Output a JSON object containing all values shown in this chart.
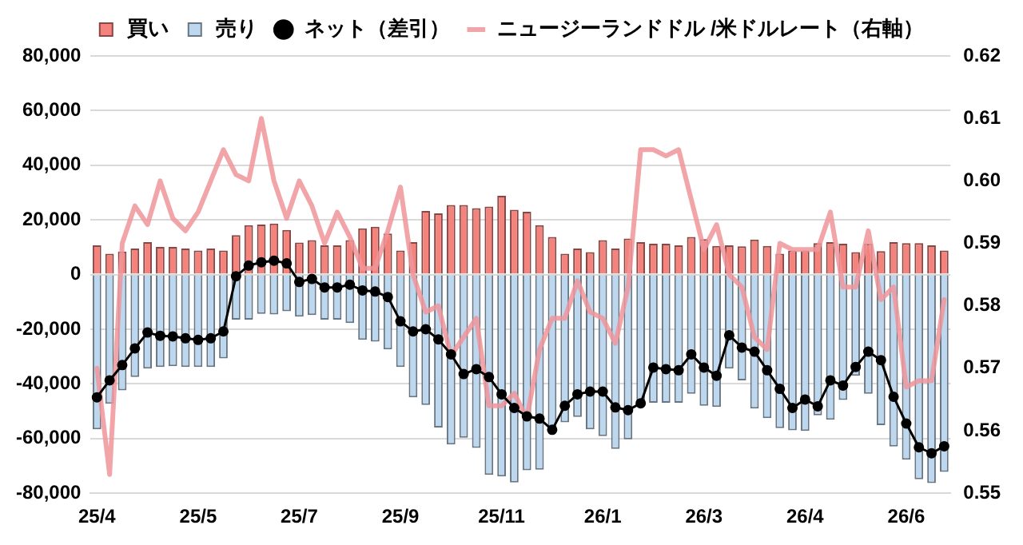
{
  "chart_data": {
    "type": "bar",
    "stacked": true,
    "legend": "top",
    "grid": "y",
    "categories": [
      "25/4",
      null,
      null,
      null,
      null,
      null,
      null,
      null,
      "25/5",
      null,
      null,
      null,
      null,
      null,
      null,
      null,
      "25/7",
      null,
      null,
      null,
      null,
      null,
      null,
      null,
      "25/9",
      null,
      null,
      null,
      null,
      null,
      null,
      null,
      "25/11",
      null,
      null,
      null,
      null,
      null,
      null,
      null,
      "26/1",
      null,
      null,
      null,
      null,
      null,
      null,
      null,
      "26/3",
      null,
      null,
      null,
      null,
      null,
      null,
      null,
      "26/4",
      null,
      null,
      null,
      null,
      null,
      null,
      null,
      "26/6",
      null,
      null,
      null
    ],
    "ylim": [
      -80000,
      80000
    ],
    "yticks": [
      {
        "value": -80000,
        "label": "-80,000"
      },
      {
        "value": -60000,
        "label": "-60,000"
      },
      {
        "value": -40000,
        "label": "-40,000"
      },
      {
        "value": -20000,
        "label": "-20,000"
      },
      {
        "value": 0,
        "label": "0"
      },
      {
        "value": 20000,
        "label": "20,000"
      },
      {
        "value": 40000,
        "label": "40,000"
      },
      {
        "value": 60000,
        "label": "60,000"
      },
      {
        "value": 80000,
        "label": "80,000"
      }
    ],
    "y2lim": [
      0.55,
      0.62
    ],
    "y2ticks": [
      {
        "value": 0.55,
        "label": "0.55"
      },
      {
        "value": 0.56,
        "label": "0.56"
      },
      {
        "value": 0.57,
        "label": "0.57"
      },
      {
        "value": 0.58,
        "label": "0.58"
      },
      {
        "value": 0.59,
        "label": "0.59"
      },
      {
        "value": 0.6,
        "label": "0.60"
      },
      {
        "value": 0.61,
        "label": "0.61"
      },
      {
        "value": 0.62,
        "label": "0.62"
      }
    ],
    "series": [
      {
        "name": "買い",
        "color": "#f4837d",
        "values": [
          10700,
          7600,
          8400,
          9500,
          11900,
          10100,
          10100,
          9500,
          8800,
          9500,
          8800,
          14400,
          18100,
          18300,
          18700,
          16300,
          11700,
          12600,
          10700,
          10700,
          12600,
          16900,
          17500,
          15000,
          8800,
          11900,
          23300,
          22400,
          25500,
          25500,
          24300,
          24900,
          28800,
          23700,
          23000,
          18100,
          13800,
          7600,
          9500,
          8200,
          12600,
          9500,
          13200,
          11900,
          11300,
          11300,
          10700,
          13800,
          13000,
          10500,
          10700,
          10300,
          12800,
          10500,
          7600,
          8800,
          8800,
          11500,
          11900,
          11300,
          8200,
          11300,
          8600,
          11900,
          11500,
          11500,
          10700,
          8800
        ]
      },
      {
        "name": "売り",
        "color": "#bdd7ee",
        "values": [
          -56600,
          -47300,
          -42400,
          -37500,
          -34400,
          -33800,
          -33500,
          -33800,
          -33800,
          -33800,
          -30700,
          -16500,
          -16500,
          -14400,
          -14600,
          -13400,
          -15400,
          -14800,
          -16500,
          -16500,
          -17700,
          -23900,
          -24500,
          -27400,
          -33800,
          -44900,
          -47700,
          -56000,
          -62200,
          -59700,
          -63400,
          -73300,
          -73900,
          -76100,
          -71600,
          -71400,
          -56600,
          -54100,
          -52100,
          -56600,
          -59100,
          -63800,
          -60300,
          -46700,
          -46900,
          -46900,
          -46900,
          -43600,
          -48000,
          -48400,
          -34400,
          -38700,
          -49000,
          -52500,
          -56200,
          -57000,
          -57200,
          -51500,
          -53100,
          -45900,
          -37000,
          -43600,
          -55100,
          -62900,
          -67700,
          -74900,
          -76300,
          -72200
        ]
      },
      {
        "name": "ネット（差引）",
        "type": "line",
        "marker": "circle",
        "color": "#000000",
        "values": [
          -44900,
          -38700,
          -33100,
          -27000,
          -21200,
          -22400,
          -22600,
          -23300,
          -23900,
          -23300,
          -20800,
          -600,
          3300,
          4500,
          5100,
          4100,
          -2700,
          -1600,
          -4700,
          -4700,
          -3700,
          -5800,
          -6200,
          -8200,
          -17100,
          -20800,
          -20000,
          -23700,
          -29200,
          -36400,
          -34600,
          -37500,
          -43800,
          -48800,
          -51900,
          -52700,
          -56800,
          -48000,
          -43800,
          -42800,
          -42800,
          -48600,
          -49600,
          -47100,
          -34000,
          -34600,
          -35000,
          -29200,
          -34000,
          -37000,
          -22200,
          -26700,
          -28200,
          -35000,
          -41800,
          -48800,
          -45700,
          -48200,
          -38700,
          -40600,
          -33800,
          -28200,
          -31300,
          -44700,
          -54500,
          -63200,
          -65400,
          -62800
        ]
      },
      {
        "name": "ニュージーランドドル /米ドルレート（右軸）",
        "type": "line",
        "axis": "y2",
        "marker": "none",
        "color": "#f0959a",
        "values": [
          0.57,
          0.553,
          0.59,
          0.596,
          0.593,
          0.6,
          0.594,
          0.592,
          0.595,
          0.6,
          0.605,
          0.601,
          0.6,
          0.61,
          0.6,
          0.594,
          0.6,
          0.596,
          0.59,
          0.595,
          0.591,
          0.586,
          0.586,
          0.592,
          0.599,
          0.585,
          0.579,
          0.58,
          0.572,
          0.575,
          0.578,
          0.564,
          0.564,
          0.566,
          0.562,
          0.573,
          0.578,
          0.578,
          0.584,
          0.579,
          0.578,
          0.574,
          0.583,
          0.605,
          0.605,
          0.604,
          0.605,
          0.597,
          0.589,
          0.593,
          0.585,
          0.583,
          0.575,
          0.573,
          0.59,
          0.589,
          0.589,
          0.589,
          0.595,
          0.583,
          0.583,
          0.592,
          0.581,
          0.583,
          0.567,
          0.568,
          0.568,
          0.581
        ]
      }
    ]
  }
}
